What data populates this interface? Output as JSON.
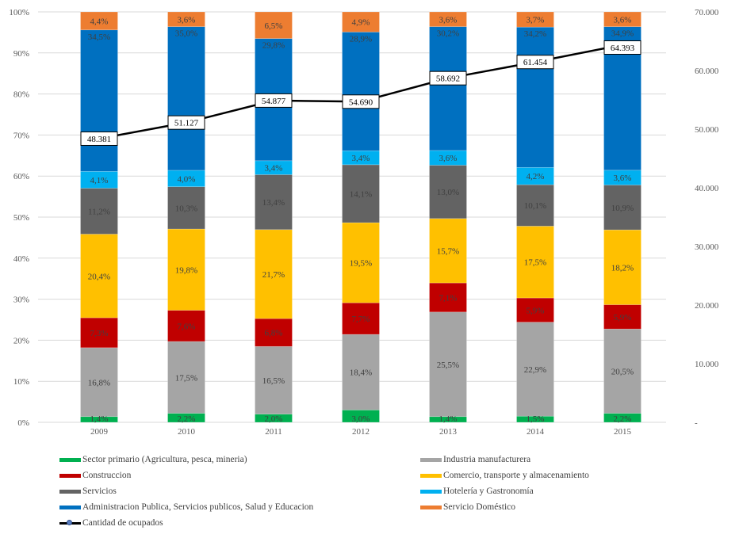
{
  "chart_data": {
    "type": "bar",
    "stacked": true,
    "percent_stacked": true,
    "title": "",
    "xlabel": "",
    "ylabel": "",
    "categories": [
      "2009",
      "2010",
      "2011",
      "2012",
      "2013",
      "2014",
      "2015"
    ],
    "y_left": {
      "range": [
        0,
        100
      ],
      "ticks": [
        "0%",
        "10%",
        "20%",
        "30%",
        "40%",
        "50%",
        "60%",
        "70%",
        "80%",
        "90%",
        "100%"
      ]
    },
    "y_right": {
      "range": [
        0,
        70000
      ],
      "ticks": [
        "-",
        "10.000",
        "20.000",
        "30.000",
        "40.000",
        "50.000",
        "60.000",
        "70.000"
      ]
    },
    "grid": true,
    "legend_position": "bottom",
    "series": [
      {
        "name": "Sector primario (Agricultura, pesca, mineria)",
        "color": "#00b050",
        "values": [
          1.4,
          2.2,
          2.0,
          3.0,
          1.4,
          1.5,
          2.2
        ],
        "labels": [
          "1,4%",
          "2,2%",
          "2,0%",
          "3,0%",
          "1,4%",
          "1,5%",
          "2,2%"
        ]
      },
      {
        "name": "Industria manufacturera",
        "color": "#a5a5a5",
        "values": [
          16.8,
          17.5,
          16.5,
          18.4,
          25.5,
          22.9,
          20.5
        ],
        "labels": [
          "16,8%",
          "17,5%",
          "16,5%",
          "18,4%",
          "25,5%",
          "22,9%",
          "20,5%"
        ]
      },
      {
        "name": "Construccion",
        "color": "#c00000",
        "values": [
          7.3,
          7.6,
          6.8,
          7.7,
          7.1,
          5.9,
          5.9
        ],
        "labels": [
          "7,3%",
          "7,6%",
          "6,8%",
          "7,7%",
          "7,1%",
          "5,9%",
          "5,9%"
        ]
      },
      {
        "name": "Comercio, transporte y almacenamiento",
        "color": "#ffc000",
        "values": [
          20.4,
          19.8,
          21.7,
          19.5,
          15.7,
          17.5,
          18.2
        ],
        "labels": [
          "20,4%",
          "19,8%",
          "21,7%",
          "19,5%",
          "15,7%",
          "17,5%",
          "18,2%"
        ]
      },
      {
        "name": "Servicios",
        "color": "#636363",
        "values": [
          11.2,
          10.3,
          13.4,
          14.1,
          13.0,
          10.1,
          10.9
        ],
        "labels": [
          "11,2%",
          "10,3%",
          "13,4%",
          "14,1%",
          "13,0%",
          "10,1%",
          "10,9%"
        ]
      },
      {
        "name": "Hotelería y Gastronomía",
        "color": "#00b0f0",
        "values": [
          4.1,
          4.0,
          3.4,
          3.4,
          3.6,
          4.2,
          3.6
        ],
        "labels": [
          "4,1%",
          "4,0%",
          "3,4%",
          "3,4%",
          "3,6%",
          "4,2%",
          "3,6%"
        ]
      },
      {
        "name": "Administracion Publica, Servicios publicos, Salud y Educacion",
        "color": "#0070c0",
        "values": [
          34.5,
          35.0,
          29.8,
          28.9,
          30.2,
          34.2,
          34.9
        ],
        "labels": [
          "34,5%",
          "35,0%",
          "29,8%",
          "28,9%",
          "30,2%",
          "34,2%",
          "34,9%"
        ]
      },
      {
        "name": "Servicio Doméstico",
        "color": "#ed7d31",
        "values": [
          4.4,
          3.6,
          6.5,
          4.9,
          3.6,
          3.7,
          3.6
        ],
        "labels": [
          "4,4%",
          "3,6%",
          "6,5%",
          "4,9%",
          "3,6%",
          "3,7%",
          "3,6%"
        ]
      }
    ],
    "line_series": {
      "name": "Cantidad de ocupados",
      "axis": "right",
      "color": "#000000",
      "marker_color": "#5b7fc0",
      "values": [
        48381,
        51127,
        54877,
        54690,
        58692,
        61454,
        64393
      ],
      "labels": [
        "48.381",
        "51.127",
        "54.877",
        "54.690",
        "58.692",
        "61.454",
        "64.393"
      ]
    }
  },
  "legend": {
    "items": [
      {
        "label": "Sector primario (Agricultura, pesca, mineria)",
        "color": "#00b050",
        "kind": "bar"
      },
      {
        "label": "Industria manufacturera",
        "color": "#a5a5a5",
        "kind": "bar"
      },
      {
        "label": "Construccion",
        "color": "#c00000",
        "kind": "bar"
      },
      {
        "label": "Comercio, transporte y almacenamiento",
        "color": "#ffc000",
        "kind": "bar"
      },
      {
        "label": "Servicios",
        "color": "#636363",
        "kind": "bar"
      },
      {
        "label": "Hotelería y Gastronomía",
        "color": "#00b0f0",
        "kind": "bar"
      },
      {
        "label": "Administracion Publica, Servicios publicos, Salud y Educacion",
        "color": "#0070c0",
        "kind": "bar"
      },
      {
        "label": "Servicio Doméstico",
        "color": "#ed7d31",
        "kind": "bar"
      },
      {
        "label": "Cantidad de ocupados",
        "color": "#000000",
        "kind": "line"
      }
    ]
  }
}
